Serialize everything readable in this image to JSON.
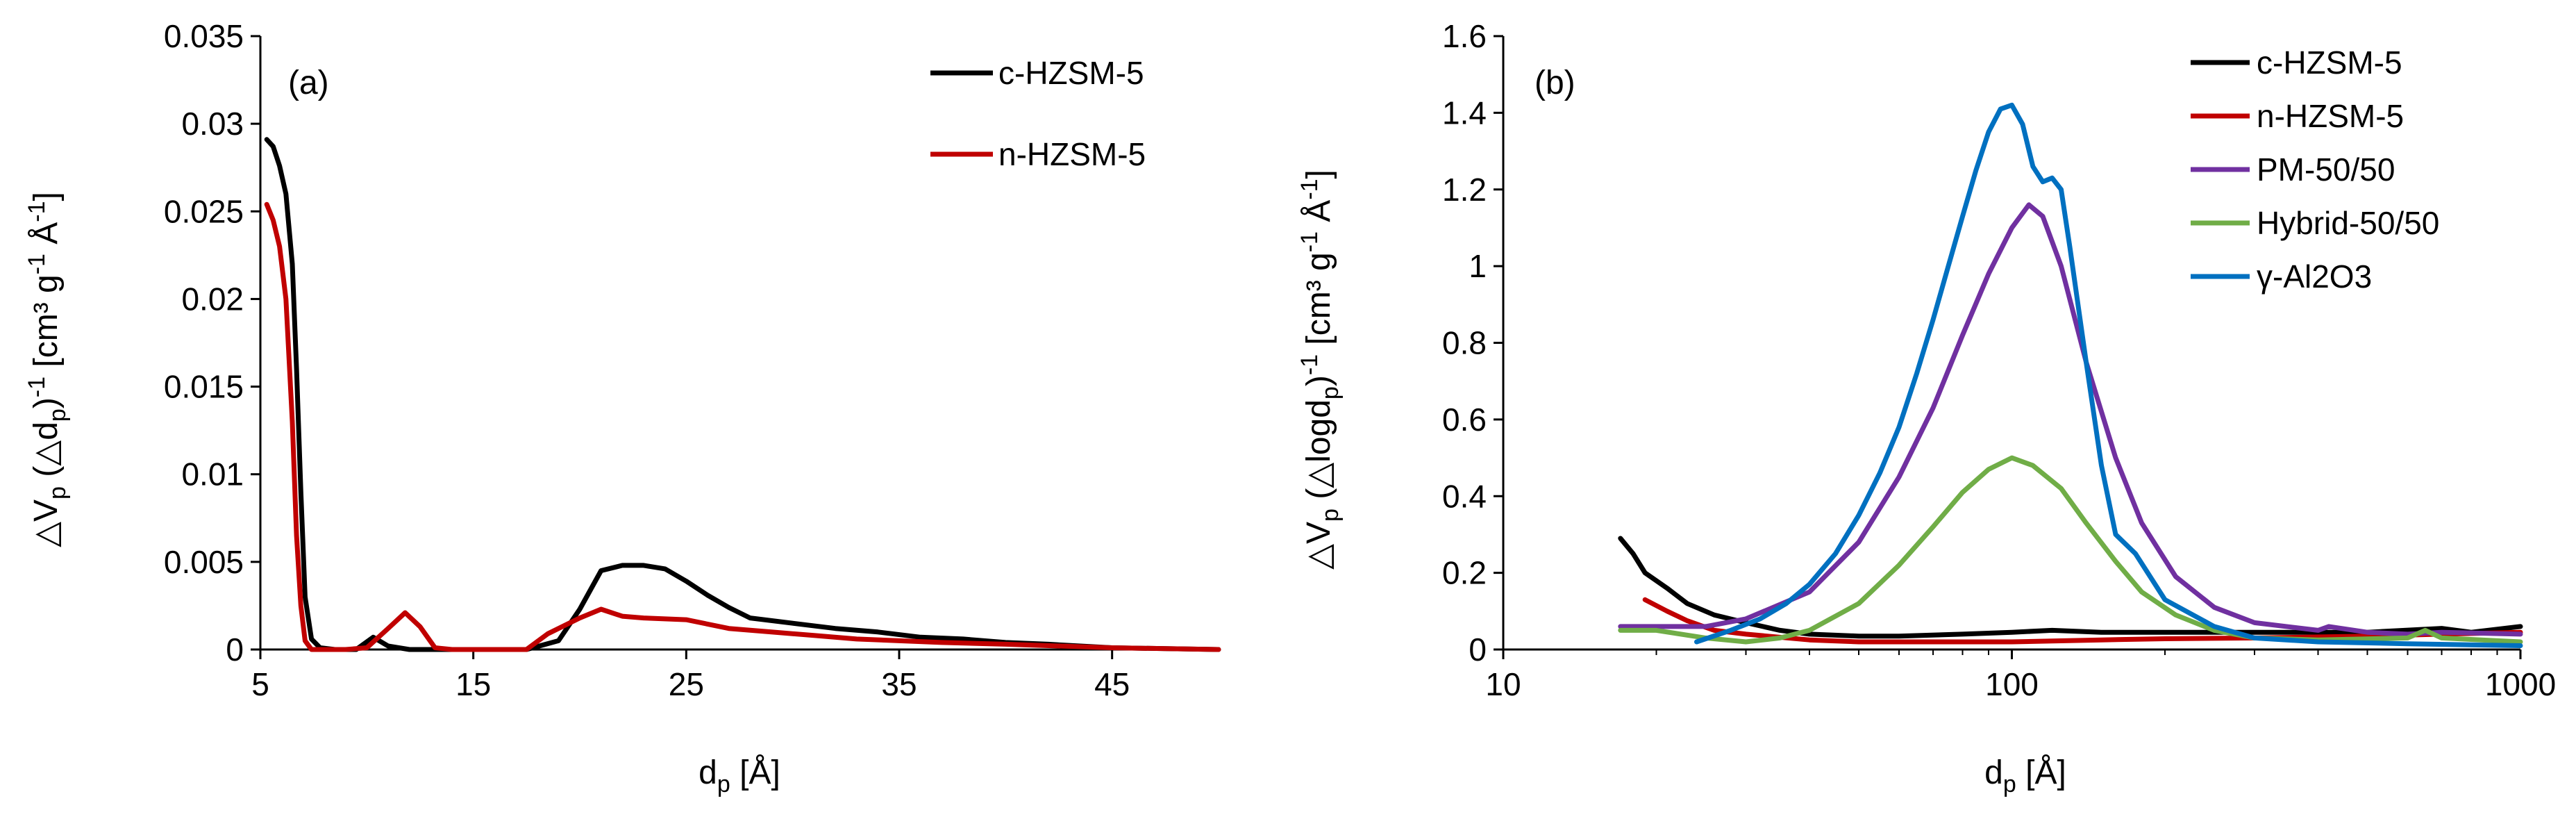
{
  "chart_data": [
    {
      "type": "line",
      "panel_label": "(a)",
      "xlabel": {
        "main": "d",
        "sub": "p",
        "tail": " [Å]"
      },
      "ylabel": {
        "p1": "△V",
        "s1": "p",
        "p2": " (△d",
        "s2": "p",
        "p3": ")",
        "sup1": "-1",
        "p4": " [cm³ g",
        "sup2": "-1",
        "p5": " Å",
        "sup3": "-1",
        "p6": "]"
      },
      "xlim": [
        5,
        50
      ],
      "ylim": [
        0,
        0.035
      ],
      "x_ticks": [
        5,
        15,
        25,
        35,
        45
      ],
      "x_tick_labels": [
        "5",
        "15",
        "25",
        "35",
        "45"
      ],
      "y_ticks": [
        0,
        0.005,
        0.01,
        0.015,
        0.02,
        0.025,
        0.03,
        0.035
      ],
      "y_tick_labels": [
        "0",
        "0.005",
        "0.01",
        "0.015",
        "0.02",
        "0.025",
        "0.03",
        "0.035"
      ],
      "legend_position": "top-right",
      "series": [
        {
          "name": "c-HZSM-5",
          "color": "#000000",
          "points": [
            [
              5.3,
              0.0291
            ],
            [
              5.6,
              0.0287
            ],
            [
              5.9,
              0.0276
            ],
            [
              6.2,
              0.026
            ],
            [
              6.5,
              0.022
            ],
            [
              6.7,
              0.016
            ],
            [
              6.9,
              0.009
            ],
            [
              7.1,
              0.003
            ],
            [
              7.4,
              0.0006
            ],
            [
              7.8,
              0.0001
            ],
            [
              8.5,
              0
            ],
            [
              9.5,
              0
            ],
            [
              10.3,
              0.0007
            ],
            [
              11,
              0.0002
            ],
            [
              12,
              0
            ],
            [
              14,
              0
            ],
            [
              16,
              0
            ],
            [
              17.5,
              0
            ],
            [
              19,
              0.0005
            ],
            [
              20,
              0.0023
            ],
            [
              21,
              0.0045
            ],
            [
              22,
              0.0048
            ],
            [
              23,
              0.0048
            ],
            [
              24,
              0.0046
            ],
            [
              25,
              0.0039
            ],
            [
              26,
              0.0031
            ],
            [
              27,
              0.0024
            ],
            [
              28,
              0.0018
            ],
            [
              30,
              0.0015
            ],
            [
              32,
              0.0012
            ],
            [
              34,
              0.001
            ],
            [
              36,
              0.0007
            ],
            [
              38,
              0.0006
            ],
            [
              40,
              0.0004
            ],
            [
              42,
              0.0003
            ],
            [
              45,
              0.0001
            ],
            [
              50,
              0
            ]
          ]
        },
        {
          "name": "n-HZSM-5",
          "color": "#c00000",
          "points": [
            [
              5.3,
              0.0254
            ],
            [
              5.6,
              0.0245
            ],
            [
              5.9,
              0.023
            ],
            [
              6.2,
              0.02
            ],
            [
              6.5,
              0.013
            ],
            [
              6.7,
              0.0065
            ],
            [
              6.9,
              0.0025
            ],
            [
              7.1,
              0.0005
            ],
            [
              7.4,
              0
            ],
            [
              9,
              0
            ],
            [
              10,
              0.0001
            ],
            [
              11,
              0.0012
            ],
            [
              11.8,
              0.0021
            ],
            [
              12.5,
              0.0013
            ],
            [
              13.2,
              0.0001
            ],
            [
              14,
              0
            ],
            [
              16,
              0
            ],
            [
              17.5,
              0
            ],
            [
              18.5,
              0.0009
            ],
            [
              20,
              0.0018
            ],
            [
              21,
              0.0023
            ],
            [
              22,
              0.0019
            ],
            [
              23,
              0.0018
            ],
            [
              25,
              0.0017
            ],
            [
              27,
              0.0012
            ],
            [
              29,
              0.001
            ],
            [
              31,
              0.0008
            ],
            [
              33,
              0.0006
            ],
            [
              35,
              0.0005
            ],
            [
              37,
              0.0004
            ],
            [
              40,
              0.0003
            ],
            [
              45,
              0.0001
            ],
            [
              50,
              0
            ]
          ]
        }
      ]
    },
    {
      "type": "line",
      "panel_label": "(b)",
      "x_scale": "log",
      "xlabel": {
        "main": "d",
        "sub": "p",
        "tail": " [Å]"
      },
      "ylabel": {
        "p1": "△V",
        "s1": "p",
        "p2": " (△logd",
        "s2": "p",
        "p3": ")",
        "sup1": "-1",
        "p4": " [cm³ g",
        "sup2": "-1",
        "p5": " Å",
        "sup3": "-1",
        "p6": "]"
      },
      "xlim": [
        10,
        1000
      ],
      "ylim": [
        0,
        1.6
      ],
      "x_ticks": [
        10,
        100,
        1000
      ],
      "x_tick_labels": [
        "10",
        "100",
        "1000"
      ],
      "y_ticks": [
        0,
        0.2,
        0.4,
        0.6,
        0.8,
        1,
        1.2,
        1.4,
        1.6
      ],
      "y_tick_labels": [
        "0",
        "0.2",
        "0.4",
        "0.6",
        "0.8",
        "1",
        "1.2",
        "1.4",
        "1.6"
      ],
      "legend_position": "top-right",
      "series": [
        {
          "name": "c-HZSM-5",
          "color": "#000000",
          "points": [
            [
              17,
              0.29
            ],
            [
              18,
              0.25
            ],
            [
              19,
              0.2
            ],
            [
              21,
              0.16
            ],
            [
              23,
              0.12
            ],
            [
              26,
              0.09
            ],
            [
              30,
              0.07
            ],
            [
              35,
              0.05
            ],
            [
              40,
              0.04
            ],
            [
              50,
              0.035
            ],
            [
              60,
              0.035
            ],
            [
              80,
              0.04
            ],
            [
              100,
              0.045
            ],
            [
              120,
              0.05
            ],
            [
              150,
              0.045
            ],
            [
              200,
              0.045
            ],
            [
              300,
              0.045
            ],
            [
              500,
              0.045
            ],
            [
              700,
              0.055
            ],
            [
              800,
              0.045
            ],
            [
              1000,
              0.06
            ]
          ]
        },
        {
          "name": "n-HZSM-5",
          "color": "#c00000",
          "points": [
            [
              19,
              0.13
            ],
            [
              21,
              0.1
            ],
            [
              23,
              0.075
            ],
            [
              26,
              0.05
            ],
            [
              30,
              0.04
            ],
            [
              40,
              0.025
            ],
            [
              50,
              0.02
            ],
            [
              70,
              0.02
            ],
            [
              100,
              0.02
            ],
            [
              150,
              0.025
            ],
            [
              200,
              0.028
            ],
            [
              300,
              0.03
            ],
            [
              500,
              0.035
            ],
            [
              700,
              0.04
            ],
            [
              1000,
              0.045
            ]
          ]
        },
        {
          "name": "PM-50/50",
          "color": "#7030a0",
          "points": [
            [
              17,
              0.06
            ],
            [
              20,
              0.06
            ],
            [
              25,
              0.06
            ],
            [
              30,
              0.08
            ],
            [
              40,
              0.15
            ],
            [
              50,
              0.28
            ],
            [
              60,
              0.45
            ],
            [
              70,
              0.63
            ],
            [
              80,
              0.82
            ],
            [
              90,
              0.98
            ],
            [
              100,
              1.1
            ],
            [
              108,
              1.16
            ],
            [
              115,
              1.13
            ],
            [
              125,
              1.0
            ],
            [
              140,
              0.75
            ],
            [
              160,
              0.5
            ],
            [
              180,
              0.33
            ],
            [
              210,
              0.19
            ],
            [
              250,
              0.11
            ],
            [
              300,
              0.07
            ],
            [
              400,
              0.05
            ],
            [
              420,
              0.06
            ],
            [
              500,
              0.045
            ],
            [
              600,
              0.04
            ],
            [
              700,
              0.045
            ],
            [
              1000,
              0.04
            ]
          ]
        },
        {
          "name": "Hybrid-50/50",
          "color": "#70ad47",
          "points": [
            [
              17,
              0.05
            ],
            [
              20,
              0.05
            ],
            [
              25,
              0.03
            ],
            [
              30,
              0.02
            ],
            [
              35,
              0.03
            ],
            [
              40,
              0.05
            ],
            [
              50,
              0.12
            ],
            [
              60,
              0.22
            ],
            [
              70,
              0.32
            ],
            [
              80,
              0.41
            ],
            [
              90,
              0.47
            ],
            [
              100,
              0.5
            ],
            [
              110,
              0.48
            ],
            [
              125,
              0.42
            ],
            [
              140,
              0.33
            ],
            [
              160,
              0.23
            ],
            [
              180,
              0.15
            ],
            [
              210,
              0.09
            ],
            [
              250,
              0.05
            ],
            [
              300,
              0.03
            ],
            [
              400,
              0.025
            ],
            [
              600,
              0.03
            ],
            [
              650,
              0.05
            ],
            [
              700,
              0.03
            ],
            [
              1000,
              0.02
            ]
          ]
        },
        {
          "name": "γ-Al2O3",
          "color": "#0070c0",
          "points": [
            [
              24,
              0.02
            ],
            [
              28,
              0.05
            ],
            [
              32,
              0.08
            ],
            [
              36,
              0.12
            ],
            [
              40,
              0.17
            ],
            [
              45,
              0.25
            ],
            [
              50,
              0.35
            ],
            [
              55,
              0.46
            ],
            [
              60,
              0.58
            ],
            [
              65,
              0.72
            ],
            [
              70,
              0.86
            ],
            [
              75,
              1.0
            ],
            [
              80,
              1.13
            ],
            [
              85,
              1.25
            ],
            [
              90,
              1.35
            ],
            [
              95,
              1.41
            ],
            [
              100,
              1.42
            ],
            [
              105,
              1.37
            ],
            [
              110,
              1.26
            ],
            [
              115,
              1.22
            ],
            [
              120,
              1.23
            ],
            [
              125,
              1.2
            ],
            [
              130,
              1.05
            ],
            [
              140,
              0.75
            ],
            [
              150,
              0.48
            ],
            [
              160,
              0.3
            ],
            [
              175,
              0.25
            ],
            [
              200,
              0.13
            ],
            [
              250,
              0.06
            ],
            [
              300,
              0.03
            ],
            [
              400,
              0.02
            ],
            [
              600,
              0.015
            ],
            [
              1000,
              0.01
            ]
          ]
        }
      ]
    }
  ]
}
